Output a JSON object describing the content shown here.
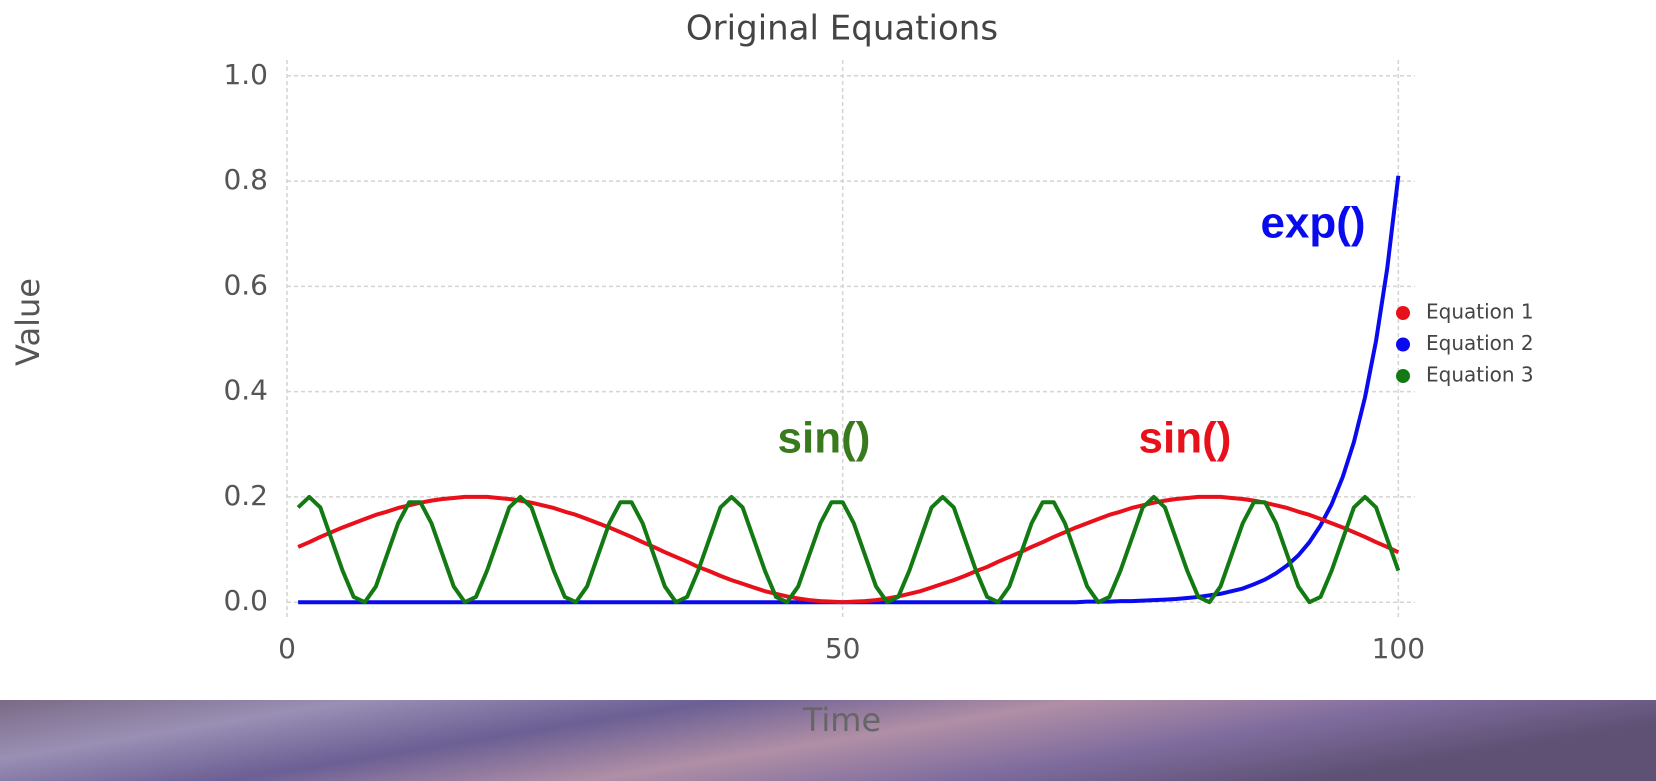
{
  "chart_data": {
    "type": "line",
    "title": "Original Equations",
    "x_label": "Time",
    "y_label": "Value",
    "xlim": [
      0,
      101.5
    ],
    "ylim": [
      -0.03,
      1.03
    ],
    "xticks": [
      0,
      50,
      100
    ],
    "yticks": [
      {
        "value": 0,
        "label": "0.0"
      },
      0.2,
      0.4,
      0.6,
      0.8,
      {
        "value": 1,
        "label": "1.0"
      }
    ],
    "grid": true,
    "legend": "right",
    "x": [
      1,
      2,
      3,
      4,
      5,
      6,
      7,
      8,
      9,
      10,
      11,
      12,
      13,
      14,
      15,
      16,
      17,
      18,
      19,
      20,
      21,
      22,
      23,
      24,
      25,
      26,
      27,
      28,
      29,
      30,
      31,
      32,
      33,
      34,
      35,
      36,
      37,
      38,
      39,
      40,
      41,
      42,
      43,
      44,
      45,
      46,
      47,
      48,
      49,
      50,
      51,
      52,
      53,
      54,
      55,
      56,
      57,
      58,
      59,
      60,
      61,
      62,
      63,
      64,
      65,
      66,
      67,
      68,
      69,
      70,
      71,
      72,
      73,
      74,
      75,
      76,
      77,
      78,
      79,
      80,
      81,
      82,
      83,
      84,
      85,
      86,
      87,
      88,
      89,
      90,
      91,
      92,
      93,
      94,
      95,
      96,
      97,
      98,
      99,
      100
    ],
    "series": [
      {
        "name": "Equation 1",
        "color": "#e8101a",
        "values": [
          0.105,
          0.114,
          0.124,
          0.133,
          0.142,
          0.15,
          0.158,
          0.166,
          0.172,
          0.179,
          0.184,
          0.189,
          0.193,
          0.196,
          0.198,
          0.2,
          0.2,
          0.2,
          0.198,
          0.196,
          0.193,
          0.189,
          0.184,
          0.179,
          0.172,
          0.166,
          0.158,
          0.15,
          0.142,
          0.133,
          0.124,
          0.114,
          0.105,
          0.095,
          0.086,
          0.077,
          0.067,
          0.059,
          0.05,
          0.042,
          0.035,
          0.028,
          0.021,
          0.016,
          0.011,
          0.007,
          0.004,
          0.002,
          0.001,
          0,
          0.001,
          0.002,
          0.004,
          0.007,
          0.011,
          0.016,
          0.021,
          0.028,
          0.035,
          0.042,
          0.05,
          0.059,
          0.067,
          0.077,
          0.086,
          0.095,
          0.105,
          0.114,
          0.124,
          0.133,
          0.142,
          0.15,
          0.158,
          0.166,
          0.172,
          0.179,
          0.184,
          0.189,
          0.193,
          0.196,
          0.198,
          0.2,
          0.2,
          0.2,
          0.198,
          0.196,
          0.193,
          0.189,
          0.184,
          0.179,
          0.172,
          0.166,
          0.158,
          0.15,
          0.142,
          0.133,
          0.124,
          0.114,
          0.105,
          0.095
        ]
      },
      {
        "name": "Equation 2",
        "color": "#0a0aee",
        "values": [
          0,
          0,
          0,
          0,
          0,
          0,
          0,
          0,
          0,
          0,
          0,
          0,
          0,
          0,
          0,
          0,
          0,
          0,
          0,
          0,
          0,
          0,
          0,
          0,
          0,
          0,
          0,
          0,
          0,
          0,
          0,
          0,
          0,
          0,
          0,
          0,
          0,
          0,
          0,
          0,
          0,
          0,
          0,
          0,
          0,
          0,
          0,
          0,
          0,
          0,
          0,
          0,
          0,
          0,
          0,
          0,
          0,
          0,
          0,
          0,
          0,
          0,
          0,
          0,
          0,
          0,
          0,
          0,
          0,
          0,
          0,
          0.001,
          0.001,
          0.001,
          0.002,
          0.002,
          0.003,
          0.004,
          0.005,
          0.006,
          0.008,
          0.01,
          0.013,
          0.016,
          0.021,
          0.026,
          0.034,
          0.043,
          0.055,
          0.07,
          0.089,
          0.114,
          0.146,
          0.186,
          0.238,
          0.304,
          0.389,
          0.497,
          0.634,
          0.81
        ]
      },
      {
        "name": "Equation 3",
        "color": "#137a13",
        "values": [
          0.18,
          0.2,
          0.18,
          0.12,
          0.06,
          0.01,
          0,
          0.03,
          0.09,
          0.15,
          0.19,
          0.19,
          0.15,
          0.09,
          0.03,
          0,
          0.01,
          0.06,
          0.12,
          0.18,
          0.2,
          0.18,
          0.12,
          0.06,
          0.01,
          0,
          0.03,
          0.09,
          0.15,
          0.19,
          0.19,
          0.15,
          0.09,
          0.03,
          0,
          0.01,
          0.06,
          0.12,
          0.18,
          0.2,
          0.18,
          0.12,
          0.06,
          0.01,
          0,
          0.03,
          0.09,
          0.15,
          0.19,
          0.19,
          0.15,
          0.09,
          0.03,
          0,
          0.01,
          0.06,
          0.12,
          0.18,
          0.2,
          0.18,
          0.12,
          0.06,
          0.01,
          0,
          0.03,
          0.09,
          0.15,
          0.19,
          0.19,
          0.15,
          0.09,
          0.03,
          0,
          0.01,
          0.06,
          0.12,
          0.18,
          0.2,
          0.18,
          0.12,
          0.06,
          0.01,
          0,
          0.03,
          0.09,
          0.15,
          0.19,
          0.19,
          0.15,
          0.09,
          0.03,
          0,
          0.01,
          0.06,
          0.12,
          0.18,
          0.2,
          0.18,
          0.12,
          0.06
        ]
      }
    ],
    "annotations": [
      {
        "text": "exp()",
        "color": "#0a0aee"
      },
      {
        "text": "sin()",
        "color": "#3a7a1f"
      },
      {
        "text": "sin()",
        "color": "#e8101a"
      }
    ]
  }
}
